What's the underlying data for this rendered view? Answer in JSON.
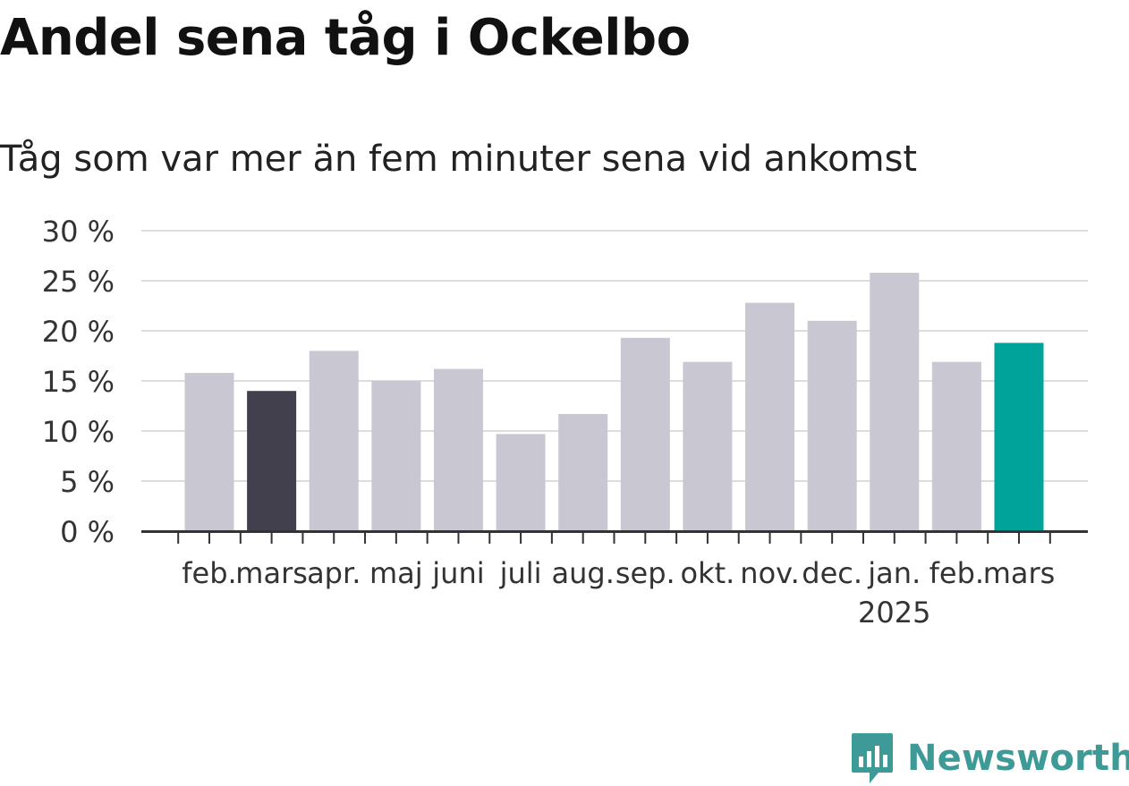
{
  "title": "Andel sena tåg i Ockelbo",
  "subtitle": "Tåg som var mer än fem minuter sena vid ankomst",
  "brand": {
    "name": "Newsworthy",
    "icon": "newsworthy-logo-icon"
  },
  "colors": {
    "default": "#c8c7d2",
    "previous_year": "#43404e",
    "current": "#00a39a",
    "grid": "#dddddd",
    "axis": "#333333"
  },
  "chart_data": {
    "type": "bar",
    "title": "Andel sena tåg i Ockelbo",
    "subtitle": "Tåg som var mer än fem minuter sena vid ankomst",
    "categories": [
      "feb.",
      "mars",
      "apr.",
      "maj",
      "juni",
      "juli",
      "aug.",
      "sep.",
      "okt.",
      "nov.",
      "dec.",
      "jan.\n2025",
      "feb.",
      "mars"
    ],
    "values": [
      15.8,
      14.0,
      18.0,
      15.0,
      16.2,
      9.7,
      11.7,
      19.3,
      16.9,
      22.8,
      21.0,
      25.8,
      16.9,
      18.8
    ],
    "highlight": [
      "default",
      "previous_year",
      "default",
      "default",
      "default",
      "default",
      "default",
      "default",
      "default",
      "default",
      "default",
      "default",
      "default",
      "current"
    ],
    "yticks": [
      "0 %",
      "5 %",
      "10 %",
      "15 %",
      "20 %",
      "25 %",
      "30 %"
    ],
    "ylim": [
      0,
      30
    ],
    "grid": true,
    "xlabel": "",
    "ylabel": ""
  }
}
